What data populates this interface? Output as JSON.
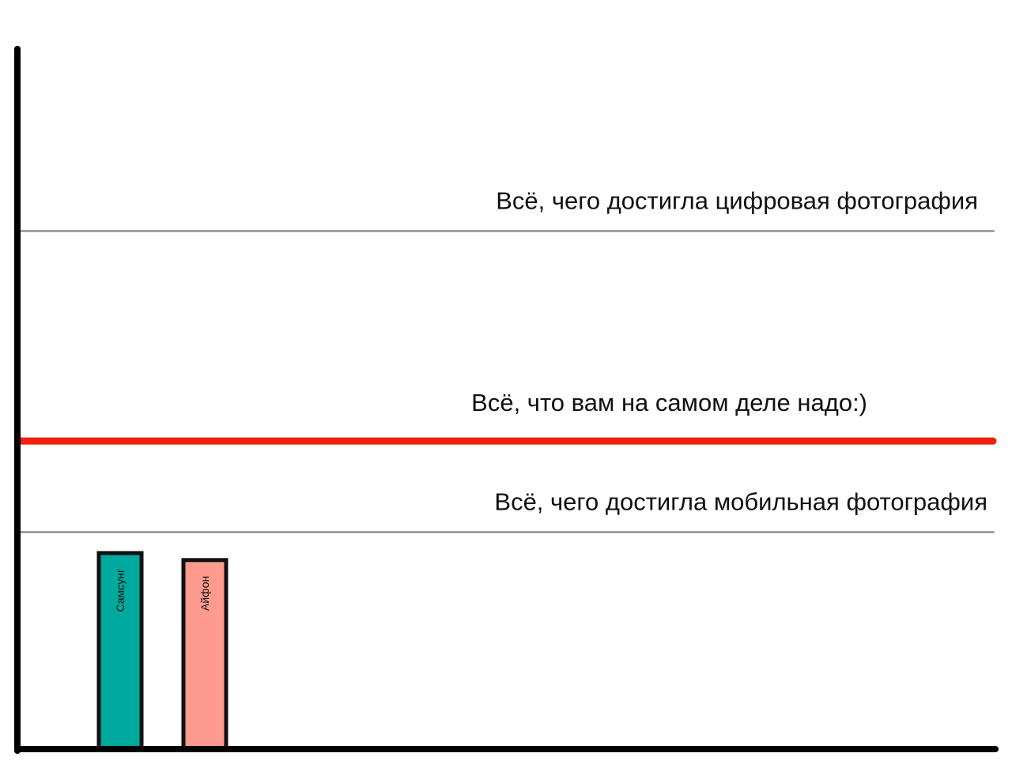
{
  "chart_data": {
    "type": "bar",
    "title": "",
    "xlabel": "",
    "ylabel": "",
    "ylim": [
      0,
      100
    ],
    "grid": false,
    "legend": "none",
    "categories": [
      "Самсунг",
      "Айфон"
    ],
    "values": [
      28,
      27
    ],
    "bar_colors": [
      "#00a99d",
      "#ff9a8e"
    ],
    "bar_outline_color": "#111111",
    "reference_lines": [
      {
        "label": "Всё, чего достигла цифровая фотография",
        "value": 74,
        "color": "#777777",
        "style": "thin"
      },
      {
        "label": "Всё, что вам на самом деле надо:)",
        "value": 44,
        "color": "#ee2211",
        "style": "thick"
      },
      {
        "label": "Всё, чего достигла мобильная фотография",
        "value": 31,
        "color": "#777777",
        "style": "thin"
      }
    ]
  }
}
